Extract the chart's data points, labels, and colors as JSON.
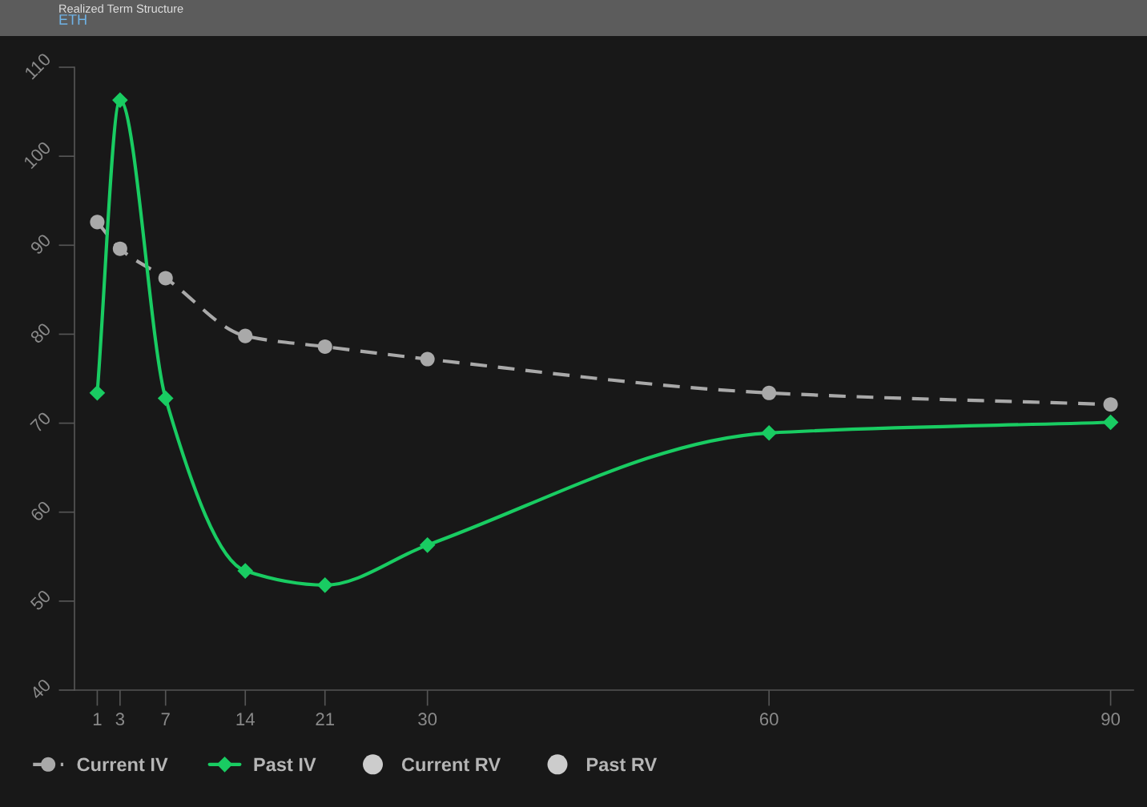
{
  "chart_data": {
    "type": "line",
    "title": "Realized Term Structure",
    "subtitle": "ETH",
    "x": [
      1,
      3,
      7,
      14,
      21,
      30,
      60,
      90
    ],
    "xlim": [
      -1,
      92
    ],
    "xticks": [
      1,
      3,
      7,
      14,
      21,
      30,
      60,
      90
    ],
    "ylim": [
      40,
      110
    ],
    "yticks": [
      40,
      50,
      60,
      70,
      80,
      90,
      100,
      110
    ],
    "series": [
      {
        "name": "Current IV",
        "color": "#a9a9a9",
        "marker": "circle",
        "line_style": "dashed",
        "values": [
          92.6,
          89.6,
          86.3,
          79.8,
          78.6,
          77.2,
          73.4,
          72.1
        ]
      },
      {
        "name": "Past IV",
        "color": "#19cc62",
        "marker": "diamond",
        "line_style": "solid",
        "values": [
          73.4,
          106.3,
          72.8,
          53.4,
          51.8,
          56.3,
          68.9,
          70.1
        ]
      },
      {
        "name": "Current RV",
        "type": "scatter",
        "color": "#cccccc",
        "marker": "circle",
        "values": [
          null,
          null,
          null,
          null,
          null,
          null,
          null,
          null
        ]
      },
      {
        "name": "Past RV",
        "type": "scatter",
        "color": "#cccccc",
        "marker": "circle",
        "values": [
          null,
          null,
          null,
          null,
          null,
          null,
          null,
          null
        ]
      }
    ],
    "legend": "bottom left"
  }
}
